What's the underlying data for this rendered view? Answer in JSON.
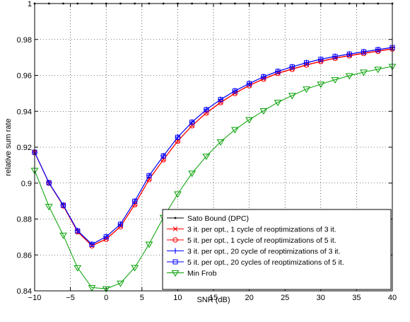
{
  "chart_data": {
    "type": "line",
    "title": "",
    "xlabel": "SNR (dB)",
    "ylabel": "relative sum rate",
    "xlim": [
      -10,
      40
    ],
    "ylim": [
      0.84,
      1.0
    ],
    "xticks": [
      -10,
      -5,
      0,
      5,
      10,
      15,
      20,
      25,
      30,
      35,
      40
    ],
    "yticks": [
      0.84,
      0.86,
      0.88,
      0.9,
      0.92,
      0.94,
      0.96,
      0.98,
      1
    ],
    "xtick_labels": [
      "−10",
      "−5",
      "0",
      "5",
      "10",
      "15",
      "20",
      "25",
      "30",
      "35",
      "40"
    ],
    "ytick_labels": [
      "0.84",
      "0.86",
      "0.88",
      "0.9",
      "0.92",
      "0.94",
      "0.96",
      "0.98",
      "1"
    ],
    "grid": true,
    "legend_position": "bottom-right",
    "x": [
      -10,
      -8,
      -6,
      -4,
      -2,
      0,
      2,
      4,
      6,
      8,
      10,
      12,
      14,
      16,
      18,
      20,
      22,
      24,
      26,
      28,
      30,
      32,
      34,
      36,
      38,
      40
    ],
    "series": [
      {
        "name": "Sato Bound (DPC)",
        "color": "#000000",
        "marker": "dot",
        "values": [
          1,
          1,
          1,
          1,
          1,
          1,
          1,
          1,
          1,
          1,
          1,
          1,
          1,
          1,
          1,
          1,
          1,
          1,
          1,
          1,
          1,
          1,
          1,
          1,
          1,
          1
        ]
      },
      {
        "name": "3 it. per opt., 1 cycle of reoptimizations of 3 it.",
        "color": "#ff0000",
        "marker": "x",
        "values": [
          0.9172,
          0.9001,
          0.8875,
          0.873,
          0.8653,
          0.8689,
          0.8759,
          0.8882,
          0.9022,
          0.9132,
          0.9235,
          0.9321,
          0.9392,
          0.945,
          0.9501,
          0.9545,
          0.9581,
          0.9613,
          0.9636,
          0.9659,
          0.9679,
          0.9697,
          0.9711,
          0.9724,
          0.9736,
          0.9749
        ]
      },
      {
        "name": "5 it. per opt., 1 cycle of reoptimizations of 5 it.",
        "color": "#ff0000",
        "marker": "o",
        "values": [
          0.917,
          0.9,
          0.8873,
          0.8729,
          0.8651,
          0.8687,
          0.8757,
          0.888,
          0.902,
          0.913,
          0.9233,
          0.9319,
          0.939,
          0.9448,
          0.9499,
          0.9543,
          0.9579,
          0.9611,
          0.9634,
          0.9657,
          0.9677,
          0.9695,
          0.9709,
          0.9722,
          0.9734,
          0.9747
        ]
      },
      {
        "name": "3 it. per opt., 20 cycle of reoptimizations of 3 it.",
        "color": "#0000ff",
        "marker": "+",
        "values": [
          0.9172,
          0.9003,
          0.8878,
          0.8736,
          0.866,
          0.8702,
          0.8772,
          0.89,
          0.9042,
          0.9152,
          0.9256,
          0.934,
          0.941,
          0.9466,
          0.9514,
          0.9555,
          0.9593,
          0.9623,
          0.9648,
          0.9671,
          0.969,
          0.9706,
          0.9719,
          0.9732,
          0.9744,
          0.9756
        ]
      },
      {
        "name": "5 it. per opt., 20 cycles of reoptimizations of 5 it.",
        "color": "#0000ff",
        "marker": "square",
        "values": [
          0.9172,
          0.9002,
          0.8877,
          0.8734,
          0.8659,
          0.8701,
          0.8771,
          0.8899,
          0.9041,
          0.9151,
          0.9255,
          0.9339,
          0.9409,
          0.9465,
          0.9513,
          0.9554,
          0.9592,
          0.9622,
          0.9647,
          0.967,
          0.9689,
          0.9705,
          0.9718,
          0.9731,
          0.9743,
          0.9755
        ]
      },
      {
        "name": "Min Frob",
        "color": "#00a000",
        "marker": "triangle-down",
        "values": [
          0.9071,
          0.887,
          0.871,
          0.8529,
          0.8418,
          0.8412,
          0.8443,
          0.853,
          0.866,
          0.8809,
          0.894,
          0.9055,
          0.915,
          0.923,
          0.9298,
          0.9353,
          0.9403,
          0.945,
          0.9488,
          0.9524,
          0.9551,
          0.9576,
          0.9598,
          0.9618,
          0.9634,
          0.965
        ]
      }
    ]
  }
}
